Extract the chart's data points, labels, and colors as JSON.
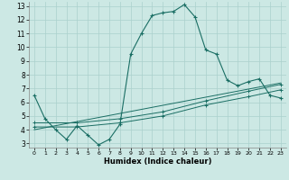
{
  "xlabel": "Humidex (Indice chaleur)",
  "bg_color": "#cce8e4",
  "grid_color": "#aad0cc",
  "line_color": "#1a6e64",
  "xlim": [
    -0.5,
    23.5
  ],
  "ylim": [
    2.7,
    13.3
  ],
  "xticks": [
    0,
    1,
    2,
    3,
    4,
    5,
    6,
    7,
    8,
    9,
    10,
    11,
    12,
    13,
    14,
    15,
    16,
    17,
    18,
    19,
    20,
    21,
    22,
    23
  ],
  "yticks": [
    3,
    4,
    5,
    6,
    7,
    8,
    9,
    10,
    11,
    12,
    13
  ],
  "line1_x": [
    0,
    1,
    2,
    3,
    4,
    5,
    6,
    7,
    8,
    9,
    10,
    11,
    12,
    13,
    14,
    15,
    16,
    17,
    18,
    19,
    20,
    21,
    22,
    23
  ],
  "line1_y": [
    6.5,
    4.8,
    4.0,
    3.3,
    4.3,
    3.6,
    2.9,
    3.3,
    4.4,
    9.5,
    11.0,
    12.3,
    12.5,
    12.6,
    13.1,
    12.2,
    9.8,
    9.5,
    7.6,
    7.2,
    7.5,
    7.7,
    6.5,
    6.3
  ],
  "line2_x": [
    0,
    4,
    8,
    12,
    16,
    20,
    23
  ],
  "line2_y": [
    4.5,
    4.5,
    4.8,
    5.3,
    6.1,
    6.8,
    7.3
  ],
  "line3_x": [
    0,
    4,
    8,
    12,
    16,
    20,
    23
  ],
  "line3_y": [
    4.2,
    4.2,
    4.5,
    5.0,
    5.8,
    6.4,
    6.9
  ],
  "line4_x": [
    0,
    23
  ],
  "line4_y": [
    4.0,
    7.4
  ]
}
